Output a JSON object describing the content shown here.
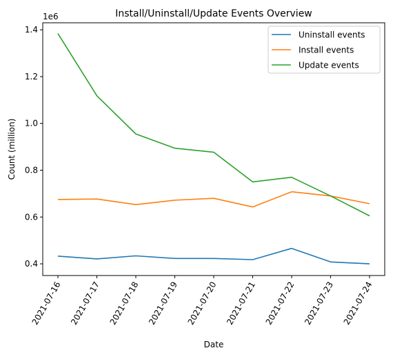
{
  "chart_data": {
    "type": "line",
    "title": "Install/Uninstall/Update Events Overview",
    "xlabel": "Date",
    "ylabel": "Count (million)",
    "y_offset_label": "1e6",
    "x": [
      "2021-07-16",
      "2021-07-17",
      "2021-07-18",
      "2021-07-19",
      "2021-07-20",
      "2021-07-21",
      "2021-07-22",
      "2021-07-23",
      "2021-07-24"
    ],
    "y_ticks": [
      {
        "value": 400000,
        "label": "0.4"
      },
      {
        "value": 600000,
        "label": "0.6"
      },
      {
        "value": 800000,
        "label": "0.8"
      },
      {
        "value": 1000000,
        "label": "1.0"
      },
      {
        "value": 1200000,
        "label": "1.2"
      },
      {
        "value": 1400000,
        "label": "1.4"
      }
    ],
    "ylim": [
      350000,
      1430000
    ],
    "grid": false,
    "legend_position": "top-right",
    "series": [
      {
        "name": "Uninstall events",
        "color": "#1f77b4",
        "values": [
          433000,
          421000,
          434000,
          423000,
          423000,
          418000,
          466000,
          408000,
          400000
        ]
      },
      {
        "name": "Install events",
        "color": "#ff7f0e",
        "values": [
          675000,
          677000,
          653000,
          672000,
          680000,
          643000,
          708000,
          690000,
          657000
        ]
      },
      {
        "name": "Update events",
        "color": "#2ca02c",
        "values": [
          1384000,
          1118000,
          955000,
          894000,
          877000,
          750000,
          770000,
          690000,
          605000
        ]
      }
    ]
  }
}
